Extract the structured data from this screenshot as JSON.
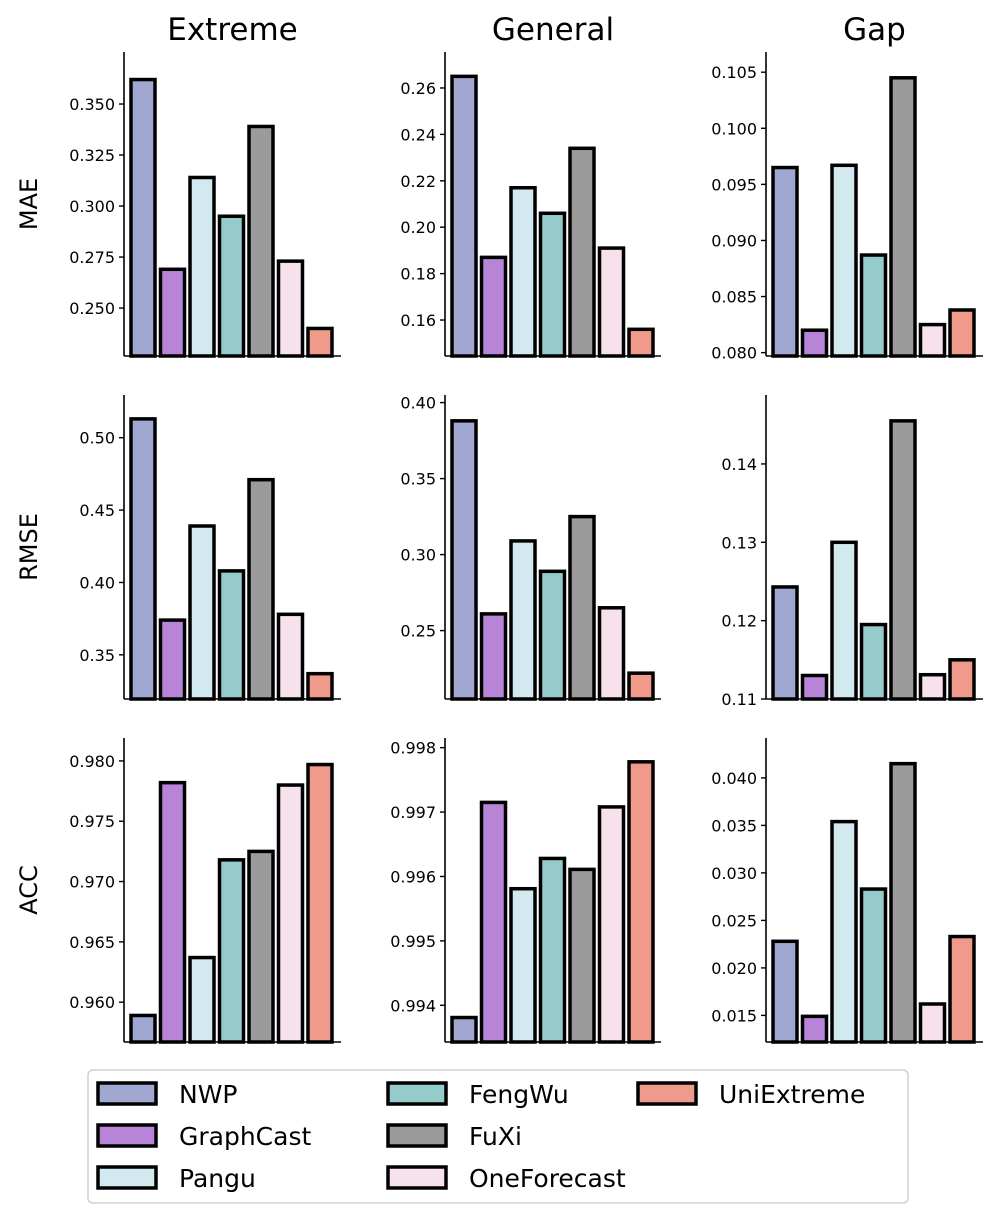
{
  "colors": {
    "NWP": "#a0a8d2",
    "GraphCast": "#b784d8",
    "Pangu": "#d2e9f0",
    "FengWu": "#95cbca",
    "FuXi": "#9b9b9b",
    "OneForecast": "#f6e1ec",
    "UniExtreme": "#f09a8c"
  },
  "legend": [
    "NWP",
    "GraphCast",
    "Pangu",
    "FengWu",
    "FuXi",
    "OneForecast",
    "UniExtreme"
  ],
  "columns": [
    "Extreme",
    "General",
    "Gap"
  ],
  "rows": [
    "MAE",
    "RMSE",
    "ACC"
  ],
  "chart_data": [
    {
      "type": "bar",
      "title": "Extreme",
      "ylabel": "MAE",
      "categories": [
        "NWP",
        "GraphCast",
        "Pangu",
        "FengWu",
        "FuXi",
        "OneForecast",
        "UniExtreme"
      ],
      "values": [
        0.362,
        0.269,
        0.314,
        0.295,
        0.339,
        0.273,
        0.24
      ],
      "ylim": [
        0.2265,
        0.3755
      ],
      "ticks": [
        0.25,
        0.275,
        0.3,
        0.325,
        0.35
      ],
      "tick_labels": [
        "0.250",
        "0.275",
        "0.300",
        "0.325",
        "0.350"
      ]
    },
    {
      "type": "bar",
      "title": "General",
      "ylabel": "",
      "categories": [
        "NWP",
        "GraphCast",
        "Pangu",
        "FengWu",
        "FuXi",
        "OneForecast",
        "UniExtreme"
      ],
      "values": [
        0.265,
        0.187,
        0.217,
        0.206,
        0.234,
        0.191,
        0.156
      ],
      "ylim": [
        0.1445,
        0.2755
      ],
      "ticks": [
        0.16,
        0.18,
        0.2,
        0.22,
        0.24,
        0.26
      ],
      "tick_labels": [
        "0.16",
        "0.18",
        "0.20",
        "0.22",
        "0.24",
        "0.26"
      ]
    },
    {
      "type": "bar",
      "title": "Gap",
      "ylabel": "",
      "categories": [
        "NWP",
        "GraphCast",
        "Pangu",
        "FengWu",
        "FuXi",
        "OneForecast",
        "UniExtreme"
      ],
      "values": [
        0.0965,
        0.082,
        0.0967,
        0.0887,
        0.1045,
        0.0825,
        0.0838
      ],
      "ylim": [
        0.0797,
        0.1068
      ],
      "ticks": [
        0.08,
        0.085,
        0.09,
        0.095,
        0.1,
        0.105
      ],
      "tick_labels": [
        "0.080",
        "0.085",
        "0.090",
        "0.095",
        "0.100",
        "0.105"
      ]
    },
    {
      "type": "bar",
      "title": "",
      "ylabel": "RMSE",
      "categories": [
        "NWP",
        "GraphCast",
        "Pangu",
        "FengWu",
        "FuXi",
        "OneForecast",
        "UniExtreme"
      ],
      "values": [
        0.513,
        0.374,
        0.439,
        0.408,
        0.471,
        0.378,
        0.337
      ],
      "ylim": [
        0.3195,
        0.5295
      ],
      "ticks": [
        0.35,
        0.4,
        0.45,
        0.5
      ],
      "tick_labels": [
        "0.35",
        "0.40",
        "0.45",
        "0.50"
      ]
    },
    {
      "type": "bar",
      "title": "",
      "ylabel": "",
      "categories": [
        "NWP",
        "GraphCast",
        "Pangu",
        "FengWu",
        "FuXi",
        "OneForecast",
        "UniExtreme"
      ],
      "values": [
        0.388,
        0.261,
        0.309,
        0.289,
        0.325,
        0.265,
        0.222
      ],
      "ylim": [
        0.205,
        0.405
      ],
      "ticks": [
        0.25,
        0.3,
        0.35,
        0.4
      ],
      "tick_labels": [
        "0.25",
        "0.30",
        "0.35",
        "0.40"
      ]
    },
    {
      "type": "bar",
      "title": "",
      "ylabel": "",
      "categories": [
        "NWP",
        "GraphCast",
        "Pangu",
        "FengWu",
        "FuXi",
        "OneForecast",
        "UniExtreme"
      ],
      "values": [
        0.1243,
        0.113,
        0.13,
        0.1195,
        0.1455,
        0.1131,
        0.115
      ],
      "ylim": [
        0.11,
        0.1488
      ],
      "ticks": [
        0.11,
        0.12,
        0.13,
        0.14
      ],
      "tick_labels": [
        "0.11",
        "0.12",
        "0.13",
        "0.14"
      ]
    },
    {
      "type": "bar",
      "title": "",
      "ylabel": "ACC",
      "categories": [
        "NWP",
        "GraphCast",
        "Pangu",
        "FengWu",
        "FuXi",
        "OneForecast",
        "UniExtreme"
      ],
      "values": [
        0.9589,
        0.9782,
        0.9637,
        0.9718,
        0.9725,
        0.978,
        0.9797
      ],
      "ylim": [
        0.9567,
        0.9819
      ],
      "ticks": [
        0.96,
        0.965,
        0.97,
        0.975,
        0.98
      ],
      "tick_labels": [
        "0.960",
        "0.965",
        "0.970",
        "0.975",
        "0.980"
      ]
    },
    {
      "type": "bar",
      "title": "",
      "ylabel": "",
      "categories": [
        "NWP",
        "GraphCast",
        "Pangu",
        "FengWu",
        "FuXi",
        "OneForecast",
        "UniExtreme"
      ],
      "values": [
        0.99381,
        0.99715,
        0.99581,
        0.99628,
        0.99611,
        0.99708,
        0.99778
      ],
      "ylim": [
        0.99343,
        0.99815
      ],
      "ticks": [
        0.994,
        0.995,
        0.996,
        0.997,
        0.998
      ],
      "tick_labels": [
        "0.994",
        "0.995",
        "0.996",
        "0.997",
        "0.998"
      ]
    },
    {
      "type": "bar",
      "title": "",
      "ylabel": "",
      "categories": [
        "NWP",
        "GraphCast",
        "Pangu",
        "FengWu",
        "FuXi",
        "OneForecast",
        "UniExtreme"
      ],
      "values": [
        0.0228,
        0.0149,
        0.0354,
        0.0283,
        0.0415,
        0.0162,
        0.0233
      ],
      "ylim": [
        0.0122,
        0.0442
      ],
      "ticks": [
        0.015,
        0.02,
        0.025,
        0.03,
        0.035,
        0.04
      ],
      "tick_labels": [
        "0.015",
        "0.020",
        "0.025",
        "0.030",
        "0.035",
        "0.040"
      ]
    }
  ]
}
